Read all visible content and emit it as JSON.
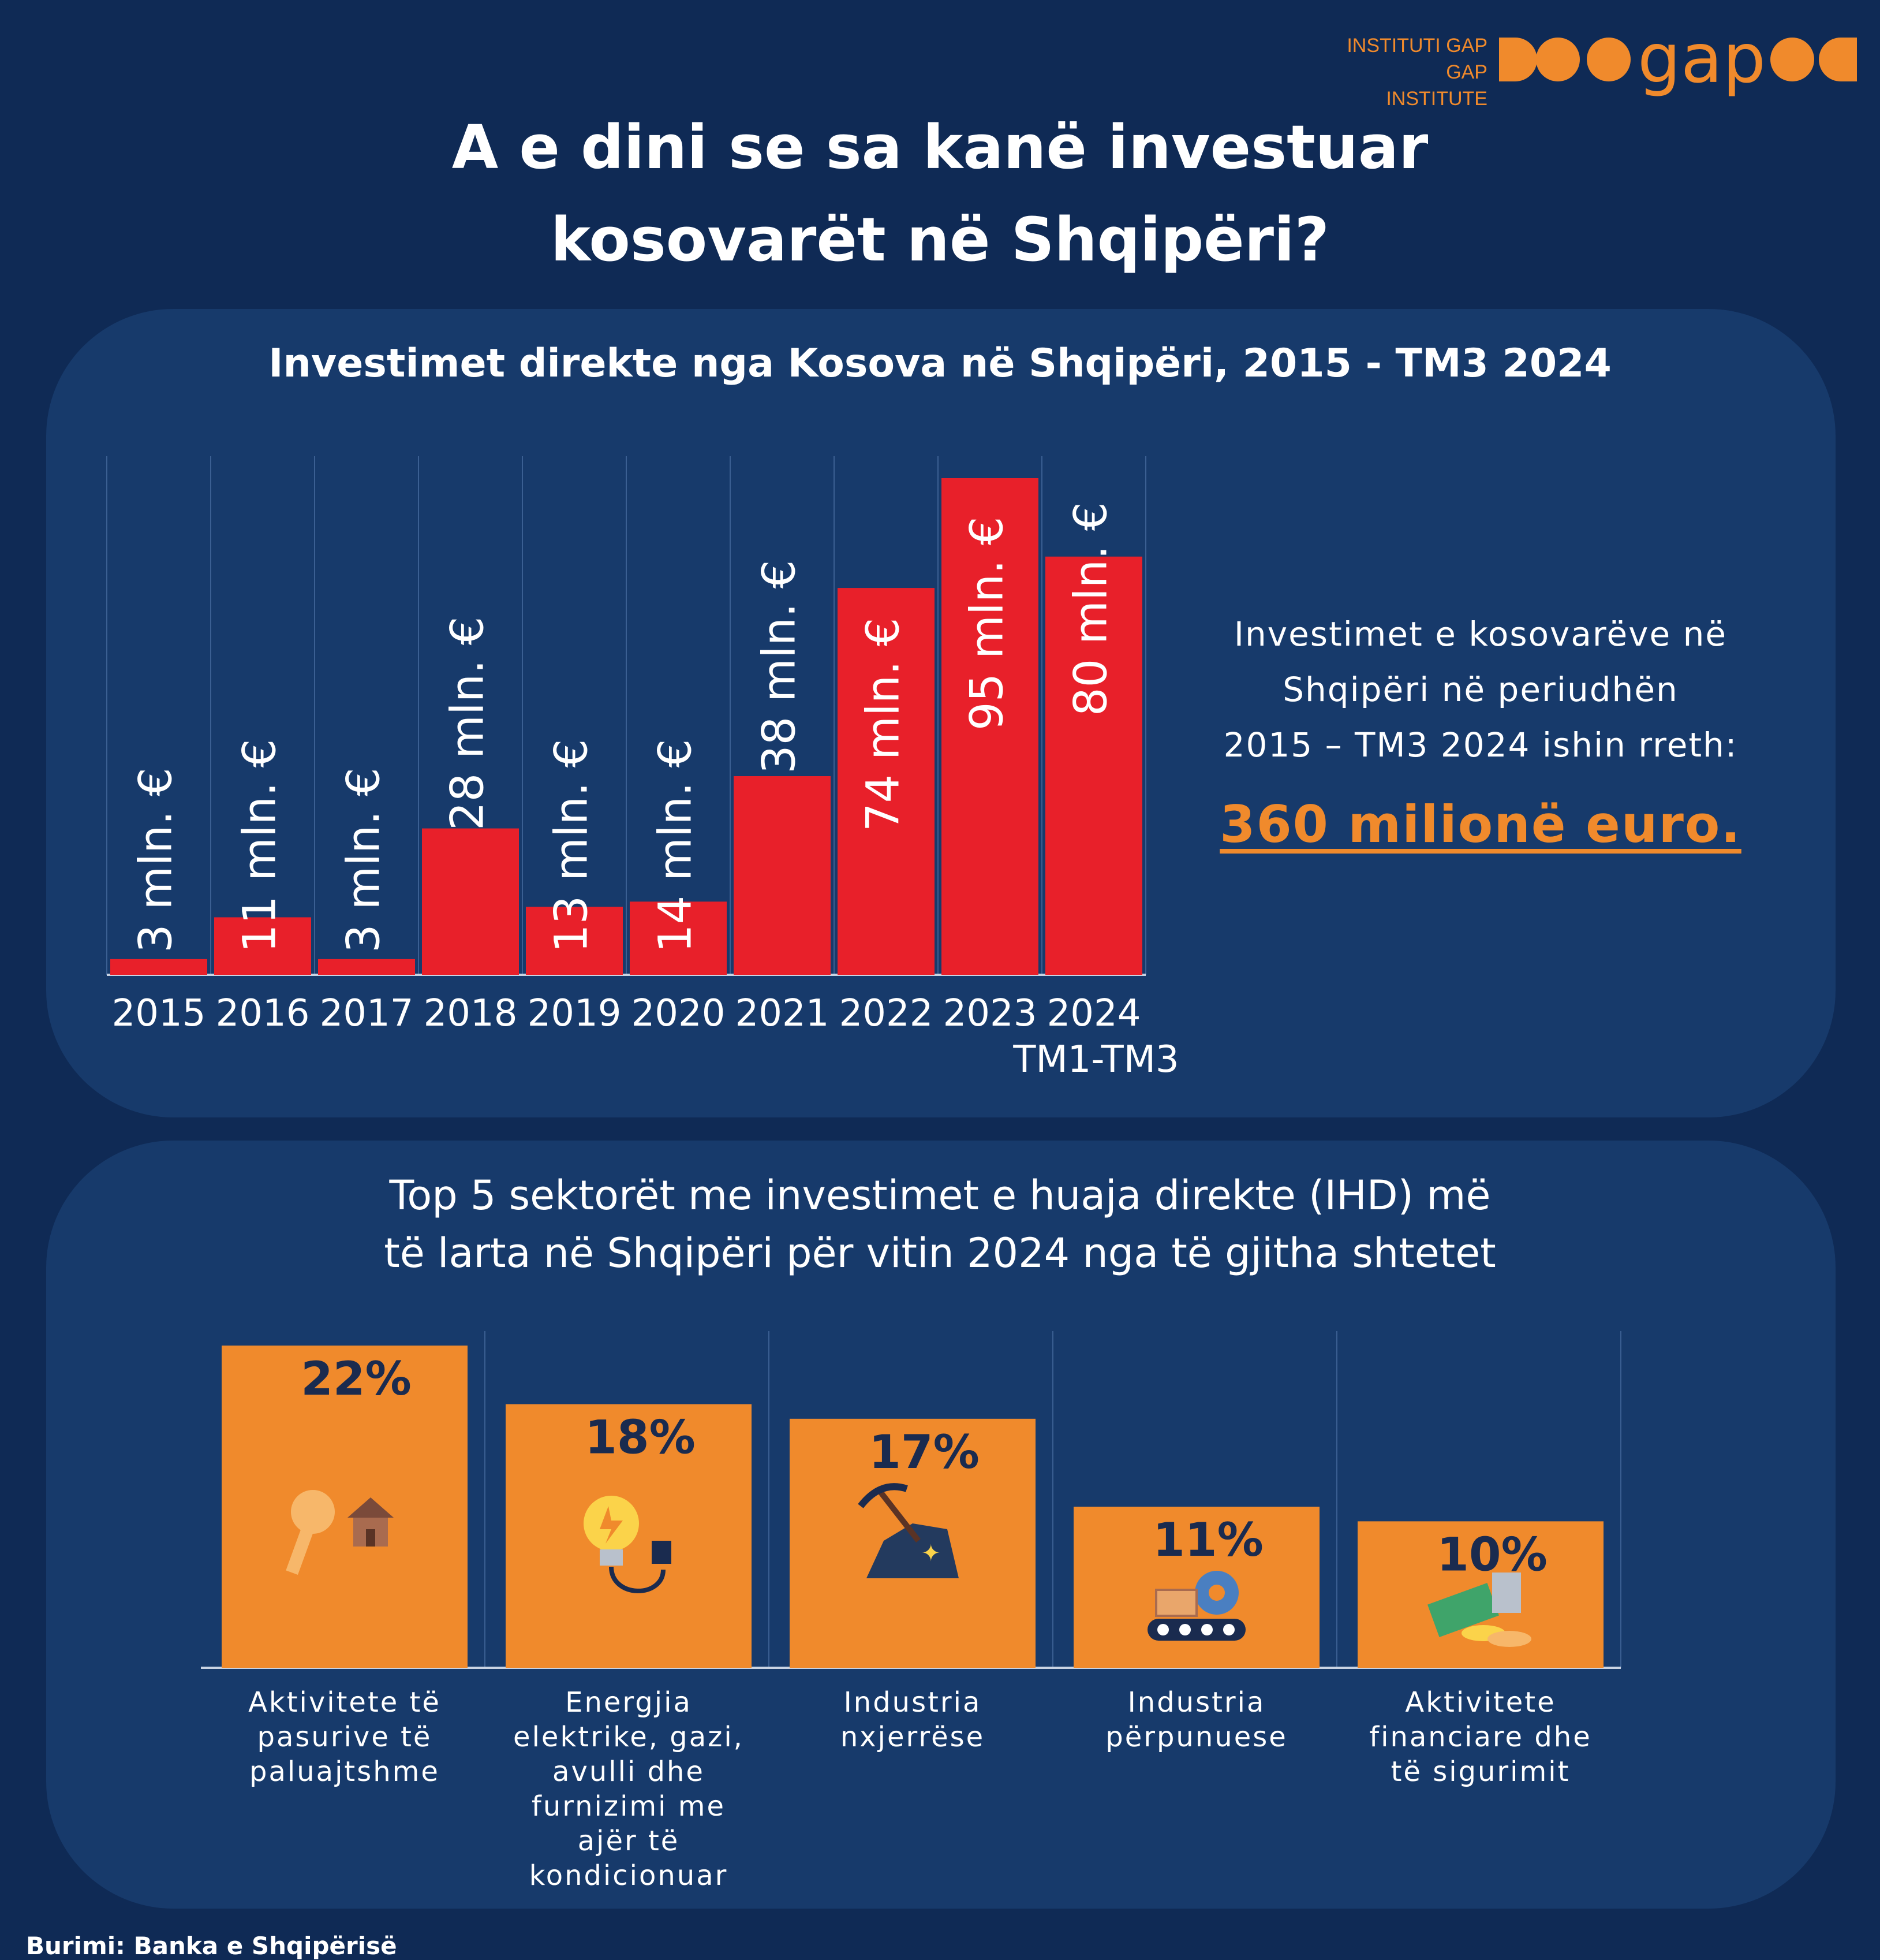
{
  "logo": {
    "line1": "INSTITUTI GAP",
    "line2": "GAP INSTITUTE",
    "wordmark": "gap"
  },
  "title": {
    "line1": "A e dini se sa kanë investuar",
    "line2": "kosovarët në Shqipëri?"
  },
  "colors": {
    "background": "#0f2a55",
    "panel": "#173a6b",
    "red_bar": "#e8202a",
    "orange": "#f08a2c",
    "dark_text": "#1a2b4f"
  },
  "summary": {
    "line1": "Investimet e kosovarëve në",
    "line2": "Shqipëri në periudhën",
    "line3": "2015 – TM3 2024 ishin rreth:",
    "total": "360 milionë euro."
  },
  "source": "Burimi: Banka e Shqipërisë",
  "chart_data": [
    {
      "type": "bar",
      "title": "Investimet direkte nga Kosova në Shqipëri, 2015 - TM3 2024",
      "categories": [
        "2015",
        "2016",
        "2017",
        "2018",
        "2019",
        "2020",
        "2021",
        "2022",
        "2023",
        "2024"
      ],
      "category_sublabels": [
        "",
        "",
        "",
        "",
        "",
        "",
        "",
        "",
        "",
        "TM1-TM3"
      ],
      "values": [
        3,
        11,
        3,
        28,
        13,
        14,
        38,
        74,
        95,
        80
      ],
      "data_labels": [
        "3 mln. €",
        "11 mln. €",
        "3 mln. €",
        "28 mln. €",
        "13 mln. €",
        "14 mln. €",
        "38 mln. €",
        "74 mln. €",
        "95 mln. €",
        "80 mln. €"
      ],
      "ylim": [
        0,
        100
      ],
      "grid": true,
      "color": "#e8202a"
    },
    {
      "type": "bar",
      "title_line1": "Top 5 sektorët me investimet e huaja direkte (IHD) më",
      "title_line2": "të larta në Shqipëri për vitin 2024 nga të gjitha shtetet",
      "categories": [
        [
          "Aktivitete të",
          "pasurive të",
          "paluajtshme"
        ],
        [
          "Energjia",
          "elektrike, gazi,",
          "avulli dhe",
          "furnizimi me",
          "ajër të",
          "kondicionuar"
        ],
        [
          "Industria",
          "nxjerrëse"
        ],
        [
          "Industria",
          "përpunuese"
        ],
        [
          "Aktivitete",
          "financiare dhe",
          "të sigurimit"
        ]
      ],
      "values": [
        22,
        18,
        17,
        11,
        10
      ],
      "data_labels": [
        "22%",
        "18%",
        "17%",
        "11%",
        "10%"
      ],
      "icons": [
        "key-house-icon",
        "lightbulb-plug-icon",
        "pickaxe-ore-icon",
        "conveyor-gear-icon",
        "money-coins-icon"
      ],
      "ylim": [
        0,
        22
      ],
      "grid": true,
      "color": "#f08a2c"
    }
  ]
}
